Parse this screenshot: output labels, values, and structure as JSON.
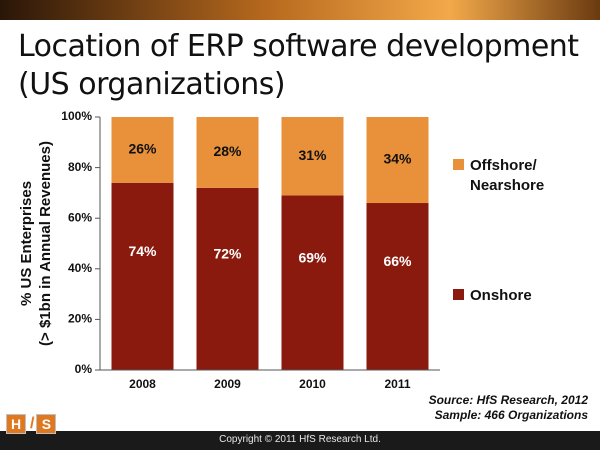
{
  "slide": {
    "title": "Location of ERP software development (US organizations)",
    "source_line1": "Source:  HfS Research, 2012",
    "source_line2": "Sample: 466 Organizations",
    "copyright": "Copyright © 2011 HfS Research Ltd.",
    "logo_left": "H",
    "logo_slash": "/",
    "logo_right": "S"
  },
  "colors": {
    "onshore": "#8b1a0e",
    "offshore": "#e8913a",
    "accent": "#e07820"
  },
  "chart_data": {
    "type": "bar",
    "stacked": true,
    "categories": [
      "2008",
      "2009",
      "2010",
      "2011"
    ],
    "series": [
      {
        "name": "Onshore",
        "values": [
          74,
          72,
          69,
          66
        ],
        "labels": [
          "74%",
          "72%",
          "69%",
          "66%"
        ]
      },
      {
        "name": "Offshore/ Nearshore",
        "legend_lines": [
          "Offshore/",
          "Nearshore"
        ],
        "values": [
          26,
          28,
          31,
          34
        ],
        "labels": [
          "26%",
          "28%",
          "31%",
          "34%"
        ]
      }
    ],
    "ylabel_lines": [
      "% US Enterprises",
      "(> $1bn in Annual Revenues)"
    ],
    "yticks": [
      "0%",
      "20%",
      "40%",
      "60%",
      "80%",
      "100%"
    ],
    "ylim": [
      0,
      100
    ],
    "grid": false,
    "legend_position": "right"
  }
}
